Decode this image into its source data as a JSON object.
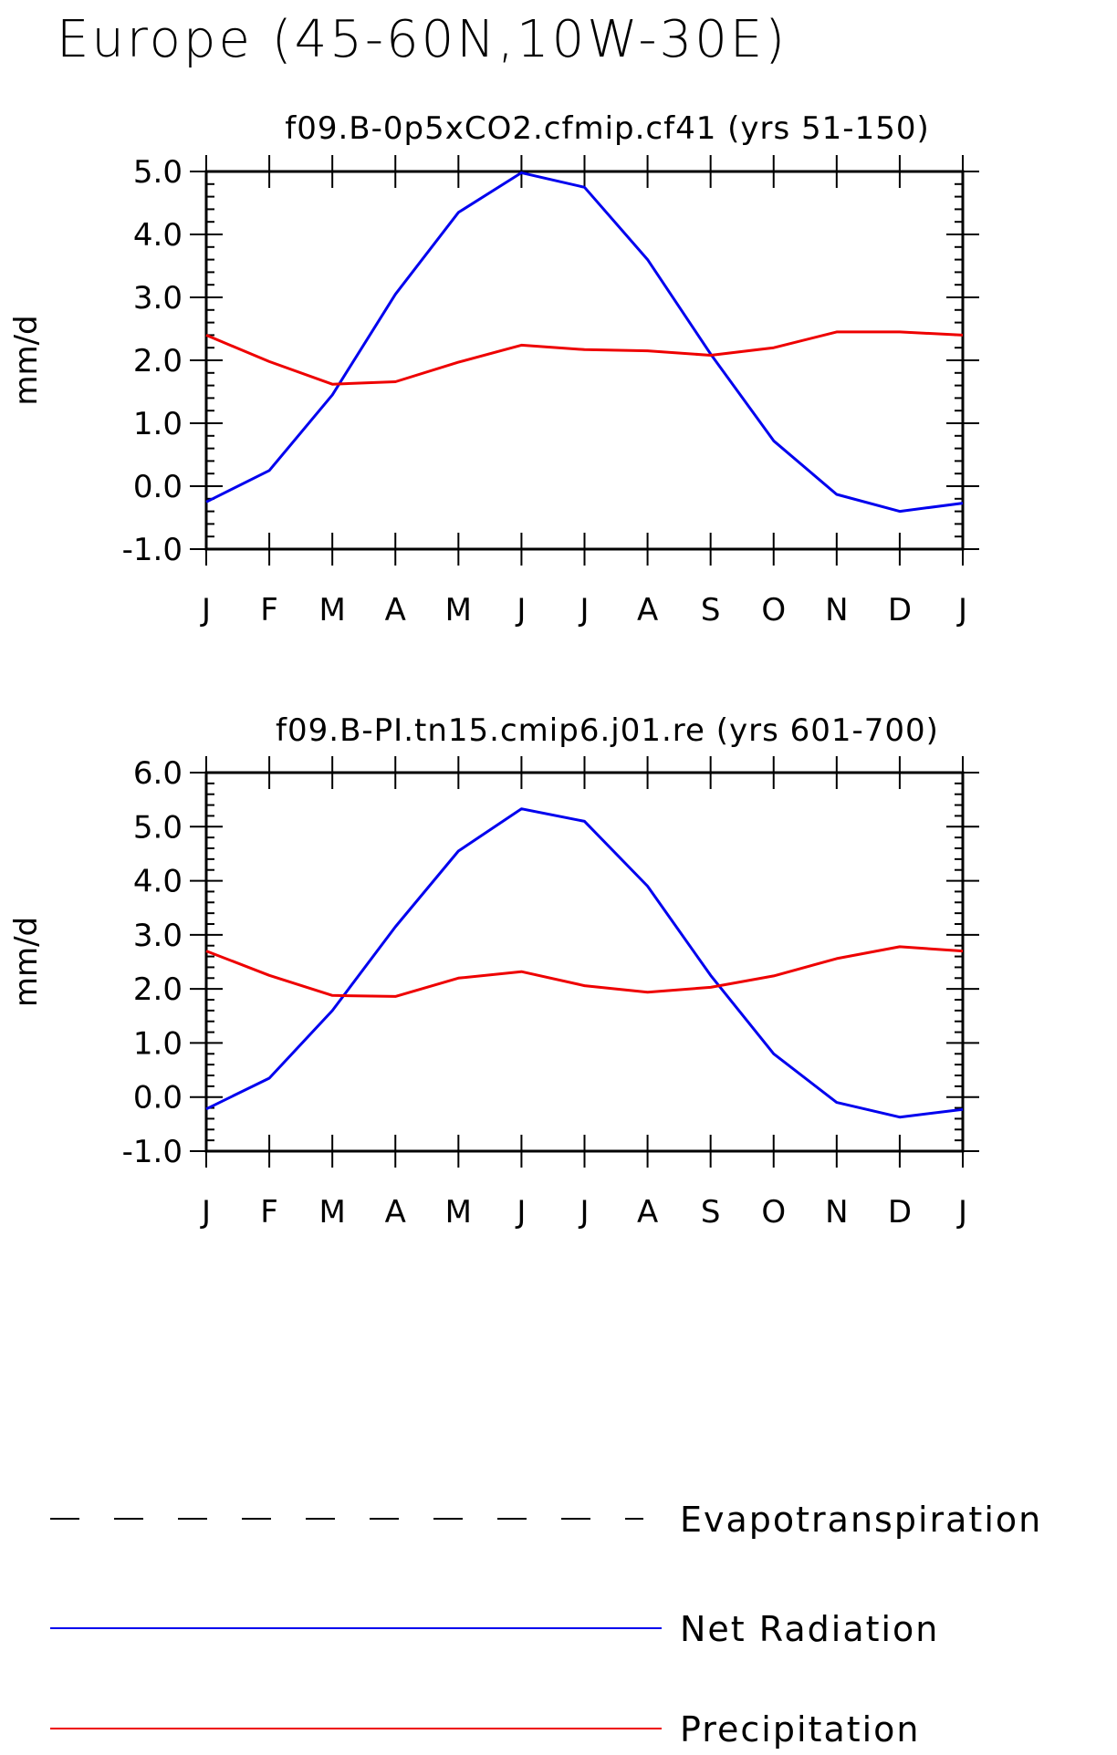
{
  "title": "Europe (45-60N,10W-30E)",
  "months": [
    "J",
    "F",
    "M",
    "A",
    "M",
    "J",
    "J",
    "A",
    "S",
    "O",
    "N",
    "D",
    "J"
  ],
  "colors": {
    "net_radiation": "#0000ee",
    "precipitation": "#ee0000",
    "evapotranspiration": "#000000"
  },
  "chart_data": [
    {
      "type": "line",
      "title": "f09.B-0p5xCO2.cfmip.cf41 (yrs 51-150)",
      "ylabel": "mm/d",
      "ylim": [
        -1.0,
        5.0
      ],
      "yticks": [
        "-1.0",
        "0.0",
        "1.0",
        "2.0",
        "3.0",
        "4.0",
        "5.0"
      ],
      "categories": [
        "J",
        "F",
        "M",
        "A",
        "M",
        "J",
        "J",
        "A",
        "S",
        "O",
        "N",
        "D",
        "J"
      ],
      "series": [
        {
          "name": "Net Radiation",
          "color": "#0000ee",
          "values": [
            -0.25,
            0.25,
            1.45,
            3.05,
            4.35,
            4.98,
            4.75,
            3.6,
            2.1,
            0.72,
            -0.13,
            -0.4,
            -0.27
          ]
        },
        {
          "name": "Precipitation",
          "color": "#ee0000",
          "values": [
            2.4,
            1.98,
            1.62,
            1.66,
            1.97,
            2.24,
            2.17,
            2.15,
            2.08,
            2.2,
            2.45,
            2.45,
            2.4
          ]
        }
      ]
    },
    {
      "type": "line",
      "title": "f09.B-PI.tn15.cmip6.j01.re (yrs 601-700)",
      "ylabel": "mm/d",
      "ylim": [
        -1.0,
        6.0
      ],
      "yticks": [
        "-1.0",
        "0.0",
        "1.0",
        "2.0",
        "3.0",
        "4.0",
        "5.0",
        "6.0"
      ],
      "categories": [
        "J",
        "F",
        "M",
        "A",
        "M",
        "J",
        "J",
        "A",
        "S",
        "O",
        "N",
        "D",
        "J"
      ],
      "series": [
        {
          "name": "Net Radiation",
          "color": "#0000ee",
          "values": [
            -0.22,
            0.35,
            1.6,
            3.15,
            4.55,
            5.33,
            5.1,
            3.9,
            2.25,
            0.8,
            -0.1,
            -0.37,
            -0.23
          ]
        },
        {
          "name": "Precipitation",
          "color": "#ee0000",
          "values": [
            2.7,
            2.25,
            1.88,
            1.86,
            2.2,
            2.32,
            2.06,
            1.94,
            2.03,
            2.24,
            2.56,
            2.78,
            2.7
          ]
        }
      ]
    }
  ],
  "legend": [
    {
      "label": "Evapotranspiration",
      "color": "#000000",
      "style": "dashed"
    },
    {
      "label": "Net Radiation",
      "color": "#0000ee",
      "style": "solid"
    },
    {
      "label": "Precipitation",
      "color": "#ee0000",
      "style": "solid"
    }
  ]
}
